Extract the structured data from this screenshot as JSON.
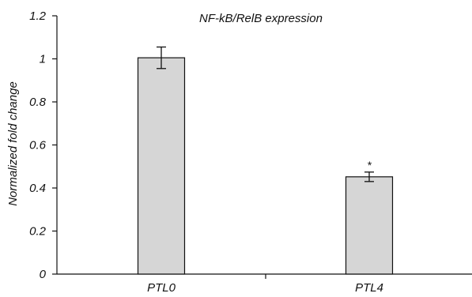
{
  "chart_data": {
    "type": "bar",
    "title": "NF-kB/RelB expression",
    "xlabel": "",
    "ylabel": "Normalized fold change",
    "categories": [
      "PTL0",
      "PTL4"
    ],
    "values": [
      1.005,
      0.452
    ],
    "error": [
      0.05,
      0.022
    ],
    "annotations": [
      "",
      "*"
    ],
    "ylim": [
      0,
      1.2
    ],
    "yticks": [
      0,
      0.2,
      0.4,
      0.6,
      0.8,
      1,
      1.2
    ],
    "ytick_labels": [
      "0",
      "0.2",
      "0.4",
      "0.6",
      "0.8",
      "1",
      "1.2"
    ],
    "grid": false,
    "legend": "none",
    "bar_color": "#d6d6d6"
  }
}
